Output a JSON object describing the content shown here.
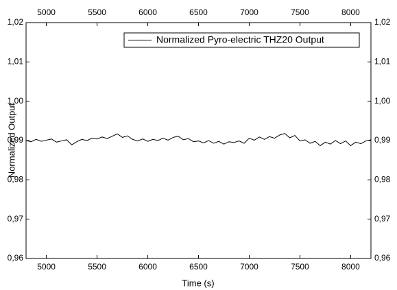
{
  "chart_data": {
    "type": "line",
    "x_label": "Time (s)",
    "y_label": "Normalized Output",
    "x": [
      4800,
      4850,
      4900,
      4950,
      5000,
      5050,
      5100,
      5150,
      5200,
      5250,
      5300,
      5350,
      5400,
      5450,
      5500,
      5550,
      5600,
      5650,
      5700,
      5750,
      5800,
      5850,
      5900,
      5950,
      6000,
      6050,
      6100,
      6150,
      6200,
      6250,
      6300,
      6350,
      6400,
      6450,
      6500,
      6550,
      6600,
      6650,
      6700,
      6750,
      6800,
      6850,
      6900,
      6950,
      7000,
      7050,
      7100,
      7150,
      7200,
      7250,
      7300,
      7350,
      7400,
      7450,
      7500,
      7550,
      7600,
      7650,
      7700,
      7750,
      7800,
      7850,
      7900,
      7950,
      8000,
      8050,
      8100,
      8150,
      8200
    ],
    "series": [
      {
        "name": "Normalized Pyro-electric THZ20 Output",
        "color": "#000000",
        "values": [
          0.99,
          0.9897,
          0.9903,
          0.9898,
          0.9901,
          0.9904,
          0.9896,
          0.9899,
          0.9902,
          0.9889,
          0.9897,
          0.9903,
          0.99,
          0.9906,
          0.9904,
          0.9909,
          0.9905,
          0.9911,
          0.9917,
          0.9908,
          0.9912,
          0.9903,
          0.9899,
          0.9904,
          0.9898,
          0.9903,
          0.99,
          0.9906,
          0.9901,
          0.9908,
          0.9911,
          0.9902,
          0.9905,
          0.9897,
          0.9899,
          0.9894,
          0.99,
          0.9893,
          0.9898,
          0.9891,
          0.9897,
          0.9895,
          0.9899,
          0.9893,
          0.9906,
          0.9901,
          0.9909,
          0.9903,
          0.991,
          0.9906,
          0.9914,
          0.9918,
          0.9907,
          0.9913,
          0.9899,
          0.9902,
          0.9893,
          0.9898,
          0.9887,
          0.9896,
          0.9891,
          0.99,
          0.9892,
          0.9899,
          0.9887,
          0.9896,
          0.9892,
          0.9899,
          0.9902
        ]
      }
    ],
    "xlim": [
      4800,
      8200
    ],
    "xticks": [
      5000,
      5500,
      6000,
      6500,
      7000,
      7500,
      8000
    ],
    "ylim": [
      0.96,
      1.02
    ],
    "yticks": [
      {
        "value": 0.96,
        "label": "0,96"
      },
      {
        "value": 0.97,
        "label": "0,97"
      },
      {
        "value": 0.98,
        "label": "0,98"
      },
      {
        "value": 0.99,
        "label": "0,99"
      },
      {
        "value": 1.0,
        "label": "1,00"
      },
      {
        "value": 1.01,
        "label": "1,01"
      },
      {
        "value": 1.02,
        "label": "1,02"
      }
    ],
    "legend": "top-right"
  }
}
